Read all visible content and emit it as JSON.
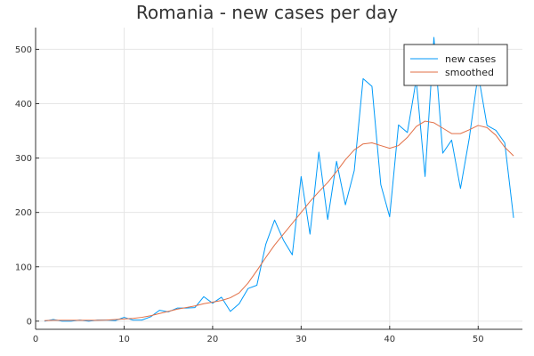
{
  "chart_data": {
    "type": "line",
    "title": "Romania - new cases per day",
    "xlabel": "",
    "ylabel": "",
    "xlim": [
      0,
      55
    ],
    "ylim": [
      -15,
      540
    ],
    "x_ticks": [
      0,
      10,
      20,
      30,
      40,
      50
    ],
    "y_ticks": [
      0,
      100,
      200,
      300,
      400,
      500
    ],
    "grid": true,
    "legend_position": "top-right",
    "series": [
      {
        "name": "new cases",
        "color": "#009AF9",
        "x": [
          1,
          2,
          3,
          4,
          5,
          6,
          7,
          8,
          9,
          10,
          11,
          12,
          13,
          14,
          15,
          16,
          17,
          18,
          19,
          20,
          21,
          22,
          23,
          24,
          25,
          26,
          27,
          28,
          29,
          30,
          31,
          32,
          33,
          34,
          35,
          36,
          37,
          38,
          39,
          40,
          41,
          42,
          43,
          44,
          45,
          46,
          47,
          48,
          49,
          50,
          51,
          52,
          53,
          54
        ],
        "values": [
          0,
          3,
          0,
          0,
          2,
          0,
          2,
          2,
          1,
          7,
          2,
          2,
          8,
          20,
          17,
          24,
          24,
          25,
          45,
          33,
          44,
          18,
          32,
          60,
          66,
          141,
          186,
          149,
          122,
          266,
          160,
          311,
          187,
          294,
          214,
          277,
          446,
          432,
          251,
          192,
          361,
          347,
          444,
          266,
          522,
          309,
          333,
          244,
          337,
          455,
          360,
          351,
          328,
          190
        ]
      },
      {
        "name": "smoothed",
        "color": "#E26F46",
        "x": [
          1,
          2,
          3,
          4,
          5,
          6,
          7,
          8,
          9,
          10,
          11,
          12,
          13,
          14,
          15,
          16,
          17,
          18,
          19,
          20,
          21,
          22,
          23,
          24,
          25,
          26,
          27,
          28,
          29,
          30,
          31,
          32,
          33,
          34,
          35,
          36,
          37,
          38,
          39,
          40,
          41,
          42,
          43,
          44,
          45,
          46,
          47,
          48,
          49,
          50,
          51,
          52,
          53,
          54
        ],
        "values": [
          1,
          1.5,
          1.5,
          1.5,
          1.5,
          1.5,
          1.5,
          2,
          3,
          4,
          5,
          7,
          10,
          14,
          18,
          22,
          25,
          28,
          32,
          35,
          38,
          43,
          52,
          70,
          93,
          117,
          140,
          160,
          180,
          200,
          220,
          238,
          255,
          275,
          297,
          315,
          326,
          328,
          323,
          318,
          323,
          338,
          358,
          368,
          365,
          355,
          345,
          345,
          352,
          360,
          356,
          342,
          320,
          304
        ]
      }
    ]
  }
}
